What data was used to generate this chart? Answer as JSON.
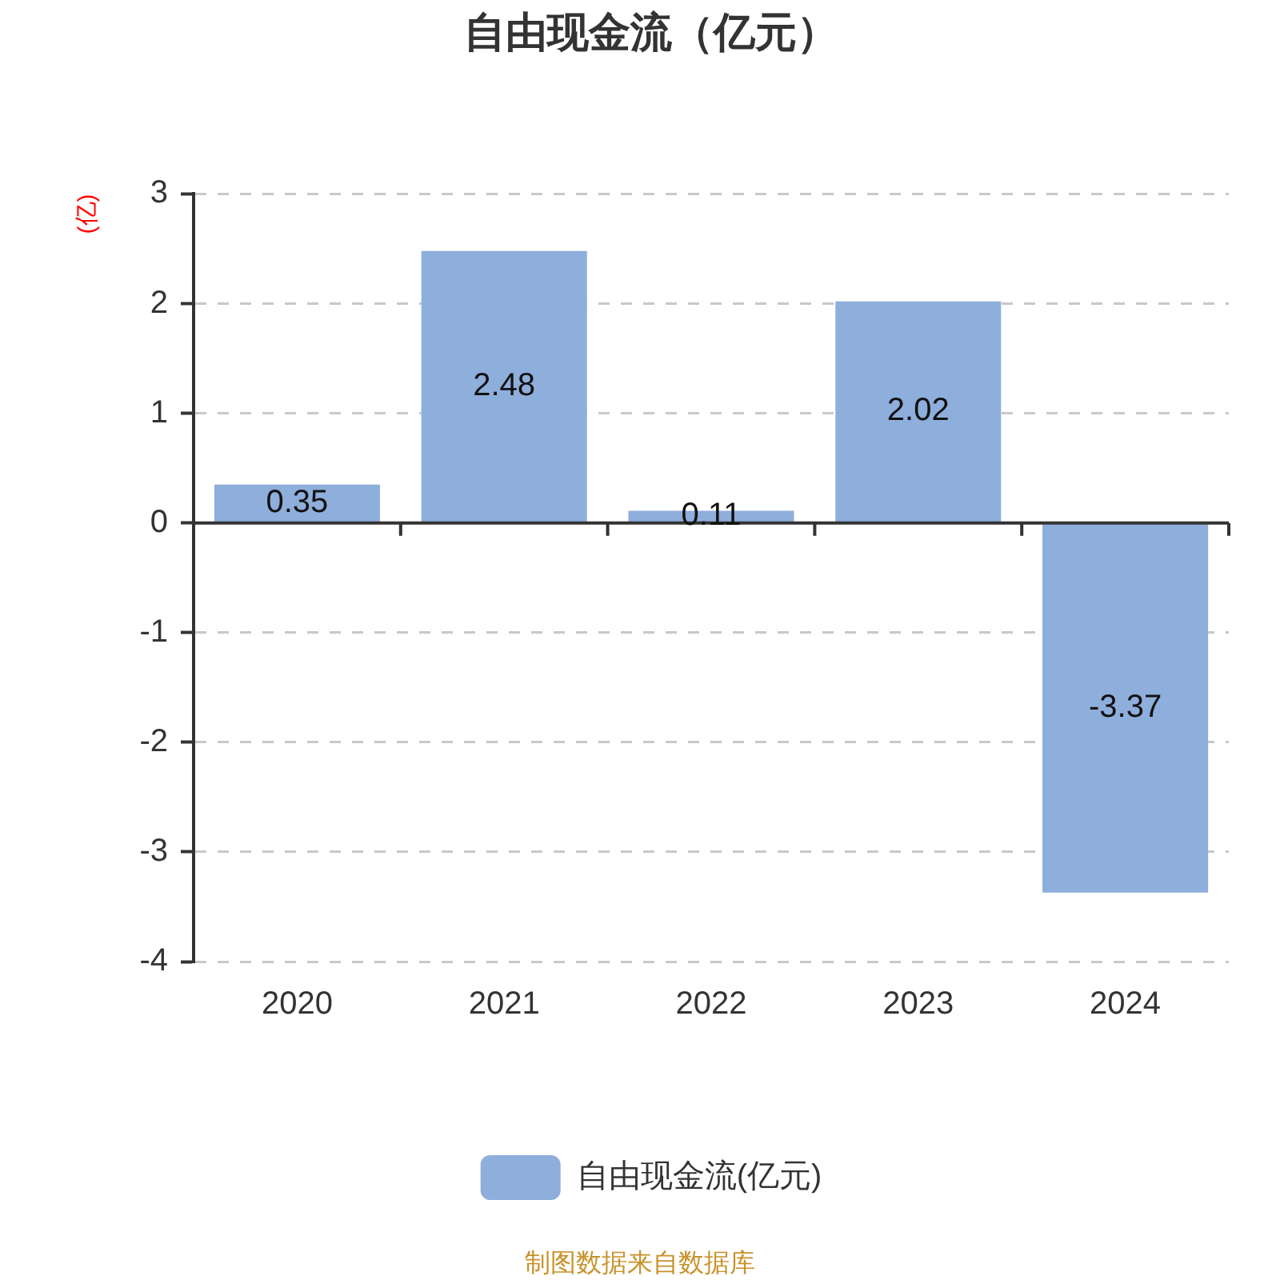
{
  "chart_data": {
    "type": "bar",
    "title": "自由现金流（亿元）",
    "ylabel": "(亿)",
    "categories": [
      "2020",
      "2021",
      "2022",
      "2023",
      "2024"
    ],
    "series": [
      {
        "name": "自由现金流(亿元)",
        "color": "#8eaedb",
        "values": [
          0.35,
          2.48,
          0.11,
          2.02,
          -3.37
        ]
      }
    ],
    "ylim": [
      -4,
      3
    ],
    "yticks": [
      -4,
      -3,
      -2,
      -1,
      0,
      1,
      2,
      3
    ],
    "grid": "y",
    "legend": "bottom",
    "data_labels": true,
    "annotations": [
      "制图数据来自数据库"
    ]
  }
}
